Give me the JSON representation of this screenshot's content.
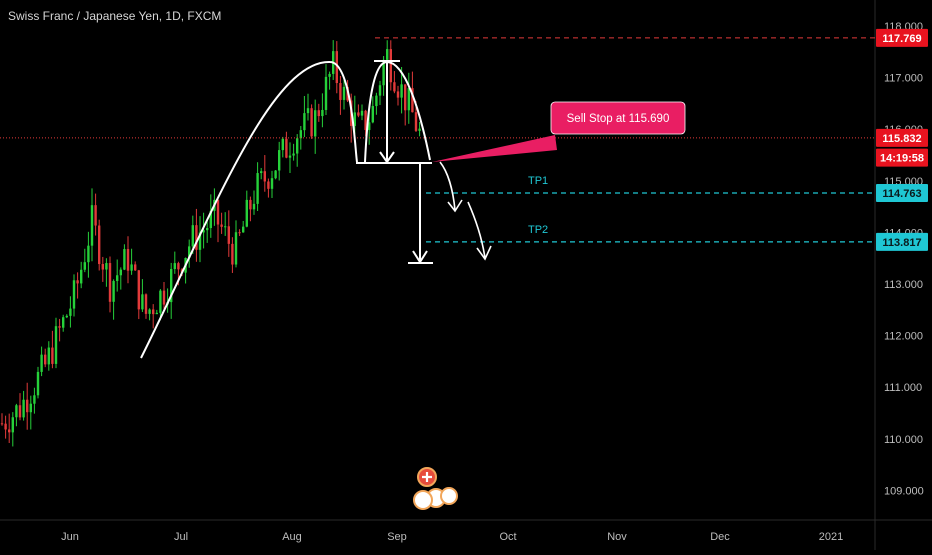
{
  "header": {
    "symbol_title": "Swiss Franc / Japanese Yen, 1D, FXCM"
  },
  "colors": {
    "background": "#000000",
    "up_candle": "#26d13a",
    "down_candle": "#e23a3a",
    "drawing": "#ffffff",
    "tp_line": "#1fc7d4",
    "resistance_line": "#e23a3a",
    "callout": "#e91e63",
    "price_badge_red": "#e8131f",
    "price_badge_cyan": "#1fc7d4"
  },
  "chart_data": {
    "type": "candlestick",
    "title": "Swiss Franc / Japanese Yen, 1D, FXCM",
    "y_axis": {
      "ticks": [
        "118.000",
        "117.000",
        "116.000",
        "115.000",
        "114.000",
        "113.000",
        "112.000",
        "111.000",
        "110.000",
        "109.000"
      ],
      "range": [
        108.85,
        118.45
      ]
    },
    "x_axis": {
      "ticks": [
        "Jun",
        "Jul",
        "Aug",
        "Sep",
        "Oct",
        "Nov",
        "Dec",
        "2021"
      ]
    },
    "price_badges": [
      {
        "label": "117.769",
        "value": 117.769,
        "style": "red"
      },
      {
        "label": "115.832",
        "value": 115.832,
        "style": "red"
      },
      {
        "label": "14:19:58",
        "value": 115.45,
        "style": "red"
      },
      {
        "label": "114.763",
        "value": 114.763,
        "style": "cyan"
      },
      {
        "label": "113.817",
        "value": 113.817,
        "style": "cyan"
      }
    ],
    "levels": [
      {
        "name": "TP1",
        "value": 114.763
      },
      {
        "name": "TP2",
        "value": 113.817
      }
    ],
    "annotation": "Sell Stop at 115.690",
    "current_price": 115.832,
    "resistance": 117.769
  }
}
